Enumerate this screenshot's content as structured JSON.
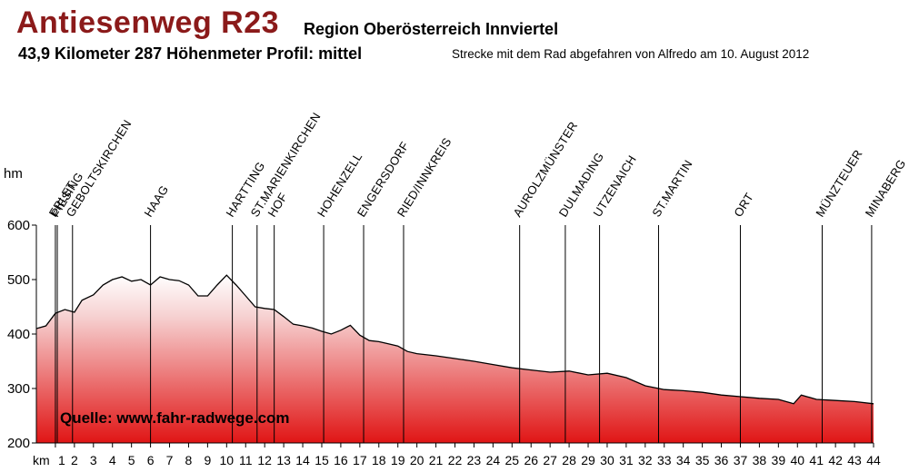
{
  "header": {
    "title": "Antiesenweg R23",
    "region": "Region Oberösterreich Innviertel",
    "stats": "43,9 Kilometer  287 Höhenmeter  Profil: mittel",
    "ridden": "Strecke mit dem Rad abgefahren von Alfredo am 10. August 2012"
  },
  "colors": {
    "title": "#8b1a1a",
    "fill_top": "#ffffff",
    "fill_bottom": "#e01515",
    "line": "#000000"
  },
  "chart_data": {
    "type": "area",
    "ylabel": "hm",
    "xlabel": "km",
    "ylim": [
      200,
      600
    ],
    "yticks": [
      200,
      300,
      400,
      500,
      600
    ],
    "xlim": [
      0,
      44
    ],
    "xticks": [
      1,
      2,
      3,
      4,
      5,
      6,
      7,
      8,
      9,
      10,
      11,
      12,
      13,
      14,
      15,
      16,
      17,
      18,
      19,
      20,
      21,
      22,
      23,
      24,
      25,
      26,
      27,
      28,
      29,
      30,
      31,
      32,
      33,
      34,
      35,
      36,
      37,
      38,
      39,
      40,
      41,
      42,
      43,
      44
    ],
    "x_unit_label": "km",
    "source": "Quelle: www.fahr-radwege.com",
    "profile": [
      [
        0,
        410
      ],
      [
        0.5,
        415
      ],
      [
        1,
        438
      ],
      [
        1.5,
        445
      ],
      [
        2,
        440
      ],
      [
        2.4,
        462
      ],
      [
        3,
        472
      ],
      [
        3.5,
        490
      ],
      [
        4,
        500
      ],
      [
        4.5,
        505
      ],
      [
        5,
        497
      ],
      [
        5.5,
        500
      ],
      [
        6,
        490
      ],
      [
        6.5,
        505
      ],
      [
        7,
        500
      ],
      [
        7.5,
        498
      ],
      [
        8,
        490
      ],
      [
        8.5,
        470
      ],
      [
        9,
        470
      ],
      [
        9.5,
        490
      ],
      [
        10,
        508
      ],
      [
        10.5,
        490
      ],
      [
        11,
        470
      ],
      [
        11.5,
        450
      ],
      [
        12,
        447
      ],
      [
        12.5,
        445
      ],
      [
        13,
        432
      ],
      [
        13.5,
        418
      ],
      [
        14,
        415
      ],
      [
        14.5,
        411
      ],
      [
        15,
        405
      ],
      [
        15.5,
        400
      ],
      [
        16,
        407
      ],
      [
        16.5,
        416
      ],
      [
        17,
        398
      ],
      [
        17.5,
        388
      ],
      [
        18,
        386
      ],
      [
        18.5,
        382
      ],
      [
        19,
        378
      ],
      [
        19.5,
        368
      ],
      [
        20,
        364
      ],
      [
        21,
        360
      ],
      [
        22,
        355
      ],
      [
        23,
        350
      ],
      [
        24,
        344
      ],
      [
        25,
        338
      ],
      [
        26,
        334
      ],
      [
        27,
        330
      ],
      [
        28,
        332
      ],
      [
        29,
        325
      ],
      [
        30,
        328
      ],
      [
        31,
        320
      ],
      [
        32,
        305
      ],
      [
        33,
        298
      ],
      [
        34,
        296
      ],
      [
        35,
        293
      ],
      [
        36,
        288
      ],
      [
        37,
        285
      ],
      [
        38,
        282
      ],
      [
        39,
        280
      ],
      [
        39.8,
        272
      ],
      [
        40.2,
        288
      ],
      [
        41,
        280
      ],
      [
        42,
        278
      ],
      [
        43,
        276
      ],
      [
        44,
        272
      ]
    ],
    "places": [
      {
        "name": "ERLET",
        "km": 1
      },
      {
        "name": "PIESING",
        "km": 1.1
      },
      {
        "name": "GEBOLTSKIRCHEN",
        "km": 1.9
      },
      {
        "name": "HAAG",
        "km": 6
      },
      {
        "name": "HARTTING",
        "km": 10.3
      },
      {
        "name": "ST.MARIENKIRCHEN",
        "km": 11.6
      },
      {
        "name": "HOF",
        "km": 12.5
      },
      {
        "name": "HOHENZELL",
        "km": 15.1
      },
      {
        "name": "ENGERSDORF",
        "km": 17.2
      },
      {
        "name": "RIED/INNKREIS",
        "km": 19.3
      },
      {
        "name": "AUROLZMÜNSTER",
        "km": 25.4
      },
      {
        "name": "DULMADING",
        "km": 27.8
      },
      {
        "name": "UTZENAICH",
        "km": 29.6
      },
      {
        "name": "ST.MARTIN",
        "km": 32.7
      },
      {
        "name": "ORT",
        "km": 37
      },
      {
        "name": "MÜNZTEUER",
        "km": 41.3
      },
      {
        "name": "MINABERG",
        "km": 43.9
      }
    ]
  }
}
